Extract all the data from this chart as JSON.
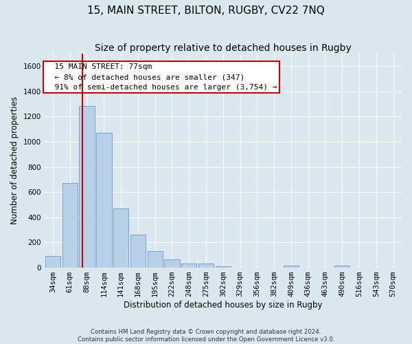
{
  "title": "15, MAIN STREET, BILTON, RUGBY, CV22 7NQ",
  "subtitle": "Size of property relative to detached houses in Rugby",
  "xlabel": "Distribution of detached houses by size in Rugby",
  "ylabel": "Number of detached properties",
  "footer_line1": "Contains HM Land Registry data © Crown copyright and database right 2024.",
  "footer_line2": "Contains public sector information licensed under the Open Government Licence v3.0.",
  "bar_labels": [
    "34sqm",
    "61sqm",
    "88sqm",
    "114sqm",
    "141sqm",
    "168sqm",
    "195sqm",
    "222sqm",
    "248sqm",
    "275sqm",
    "302sqm",
    "329sqm",
    "356sqm",
    "382sqm",
    "409sqm",
    "436sqm",
    "463sqm",
    "490sqm",
    "516sqm",
    "543sqm",
    "570sqm"
  ],
  "bar_values": [
    95,
    670,
    1285,
    1070,
    470,
    265,
    130,
    68,
    32,
    35,
    12,
    0,
    0,
    0,
    18,
    0,
    0,
    18,
    0,
    0,
    0
  ],
  "bar_color": "#b8d0e8",
  "bar_edge_color": "#6699cc",
  "annotation_box_text": "  15 MAIN STREET: 77sqm\n  ← 8% of detached houses are smaller (347)\n  91% of semi-detached houses are larger (3,754) →",
  "vline_color": "#cc0000",
  "vline_x": 1.72,
  "ylim": [
    0,
    1700
  ],
  "yticks": [
    0,
    200,
    400,
    600,
    800,
    1000,
    1200,
    1400,
    1600
  ],
  "bg_color": "#dce8f0",
  "plot_bg_color": "#dce8f0",
  "grid_color": "#ffffff",
  "title_fontsize": 11,
  "subtitle_fontsize": 10,
  "axis_label_fontsize": 8.5,
  "tick_fontsize": 7.5,
  "annotation_fontsize": 8
}
